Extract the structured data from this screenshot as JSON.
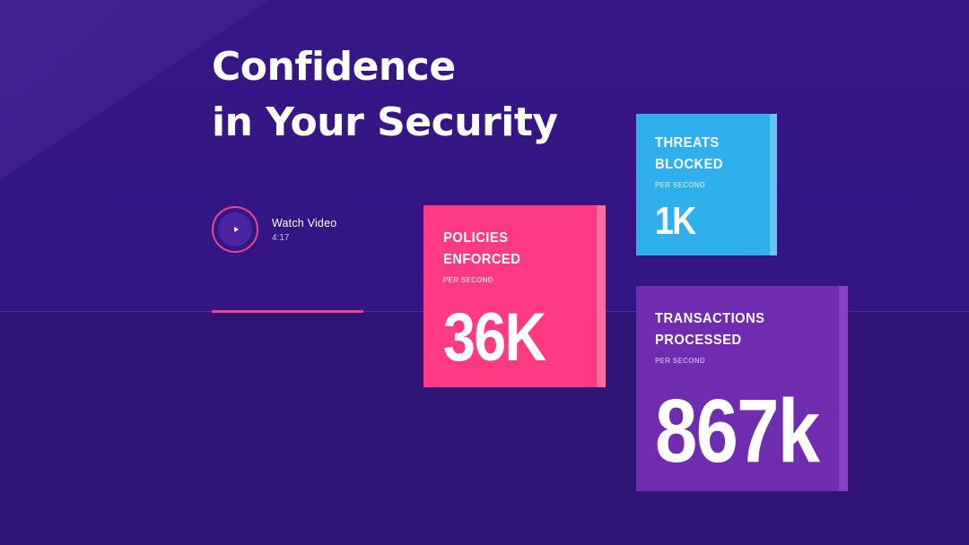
{
  "hero": {
    "headline_line1": "Confidence",
    "headline_line2": "in Your Security"
  },
  "video": {
    "label": "Watch Video",
    "duration": "4:17",
    "icon": "play-icon"
  },
  "stats": {
    "policies": {
      "label_line1": "POLICIES",
      "label_line2": "ENFORCED",
      "sub": "PER SECOND",
      "value": "36K",
      "color": "#ff3a84"
    },
    "threats": {
      "label_line1": "THREATS",
      "label_line2": "BLOCKED",
      "sub": "PER SECOND",
      "value": "1K",
      "color": "#2fb0ec"
    },
    "transactions": {
      "label_line1": "TRANSACTIONS",
      "label_line2": "PROCESSED",
      "sub": "PER SECOND",
      "value": "867k",
      "color": "#6f2cb0"
    }
  },
  "colors": {
    "background": "#301577",
    "accent": "#e9468f"
  }
}
